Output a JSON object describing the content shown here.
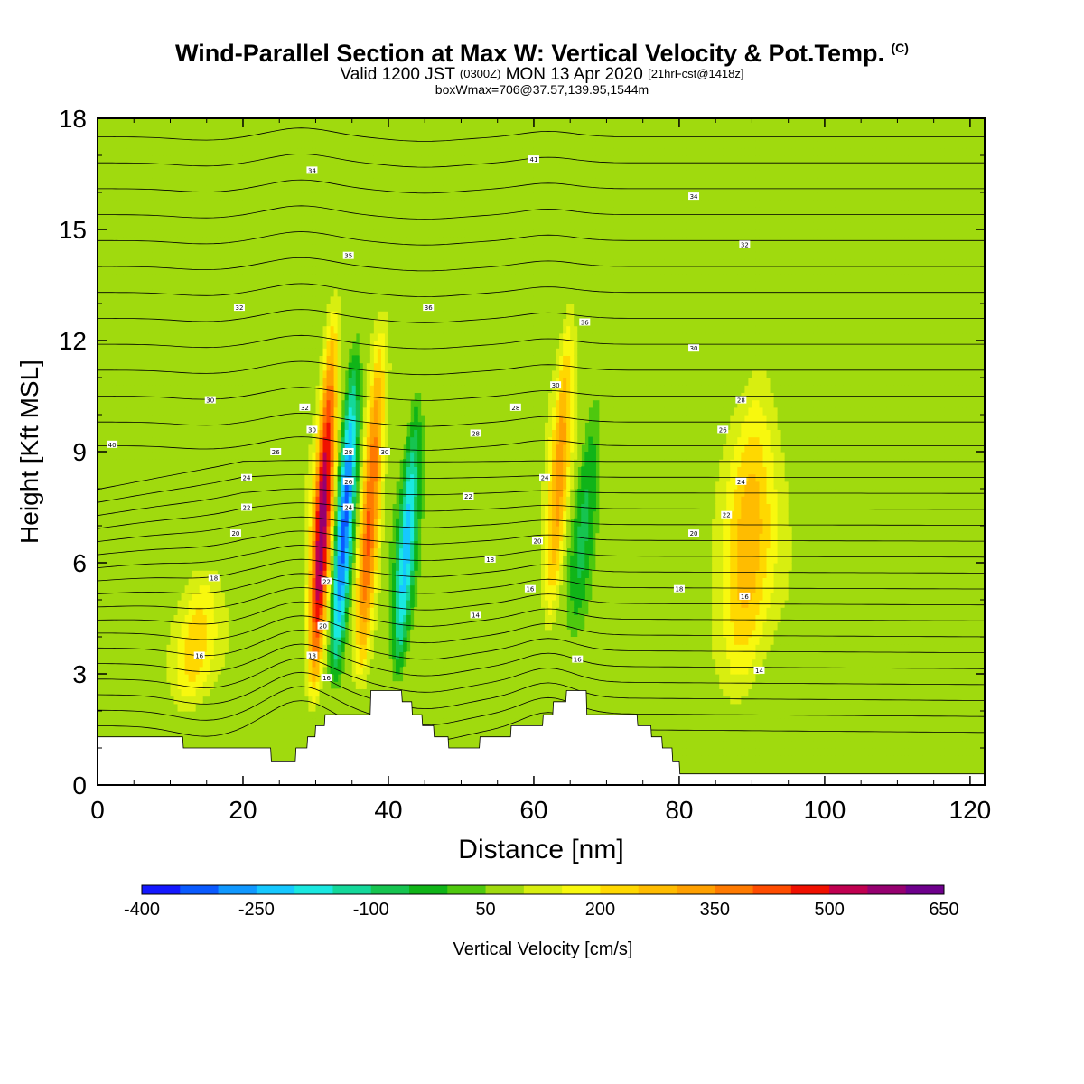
{
  "title": {
    "main": "Wind-Parallel Section at Max W: Vertical Velocity & Pot.Temp.",
    "copyright": "(C)",
    "valid_prefix": "Valid 1200 JST",
    "valid_utc": "(0300Z)",
    "valid_date": "MON 13 Apr 2020",
    "forecast": "[21hrFcst@1418z]",
    "subtitle": "boxWmax=706@37.57,139.95,1544m"
  },
  "chart_data": {
    "type": "heatmap",
    "xlabel": "Distance [nm]",
    "ylabel": "Height [Kft MSL]",
    "xlim": [
      0,
      122
    ],
    "ylim": [
      0,
      18
    ],
    "x_ticks": [
      "0",
      "20",
      "40",
      "60",
      "80",
      "100",
      "120"
    ],
    "y_ticks": [
      "0",
      "3",
      "6",
      "9",
      "12",
      "15",
      "18"
    ],
    "background_color": "#4ec80e",
    "colorbar": {
      "label": "Vertical Velocity [cm/s]",
      "tick_labels": [
        "-400",
        "-250",
        "-100",
        "50",
        "200",
        "350",
        "500",
        "650"
      ],
      "colors": [
        "#1418ff",
        "#0a5aff",
        "#1098ff",
        "#16c8ff",
        "#1ae8e0",
        "#14d89a",
        "#16c450",
        "#10b418",
        "#4ec80e",
        "#a0da0e",
        "#d8ee10",
        "#f8f80e",
        "#ffd800",
        "#ffbc00",
        "#ffa000",
        "#ff7a00",
        "#ff4c00",
        "#f01000",
        "#c00050",
        "#960070",
        "#6e008c"
      ]
    },
    "updrafts": [
      {
        "x": 29.5,
        "y_bottom": 1.8,
        "y_top": 13.5,
        "peak_cm_s": 500
      },
      {
        "x": 36,
        "y_bottom": 2.5,
        "y_top": 13,
        "peak_cm_s": 350
      },
      {
        "x": 62,
        "y_bottom": 4,
        "y_top": 13.5,
        "peak_cm_s": 250
      },
      {
        "x": 88,
        "y_bottom": 2,
        "y_top": 12,
        "peak_cm_s": 200
      },
      {
        "x": 12,
        "y_bottom": 1.8,
        "y_top": 6,
        "peak_cm_s": 150
      }
    ],
    "downdrafts": [
      {
        "x": 32.5,
        "y_bottom": 2.5,
        "y_top": 12.5,
        "peak_cm_s": -400
      },
      {
        "x": 41,
        "y_bottom": 2.5,
        "y_top": 11,
        "peak_cm_s": -300
      },
      {
        "x": 65.5,
        "y_bottom": 4,
        "y_top": 11,
        "peak_cm_s": -150
      }
    ],
    "terrain_kft": [
      [
        0,
        1.3
      ],
      [
        11.7,
        1.3
      ],
      [
        11.8,
        1.0
      ],
      [
        23.8,
        1.0
      ],
      [
        23.9,
        0.65
      ],
      [
        27.2,
        0.65
      ],
      [
        27.3,
        1.0
      ],
      [
        28.8,
        1.0
      ],
      [
        28.9,
        1.3
      ],
      [
        29.9,
        1.3
      ],
      [
        30,
        1.6
      ],
      [
        31.2,
        1.6
      ],
      [
        31.3,
        1.9
      ],
      [
        37.5,
        1.9
      ],
      [
        37.6,
        2.55
      ],
      [
        41.8,
        2.55
      ],
      [
        41.9,
        2.25
      ],
      [
        43.2,
        2.25
      ],
      [
        43.3,
        1.9
      ],
      [
        44.6,
        1.9
      ],
      [
        44.7,
        1.6
      ],
      [
        46.2,
        1.6
      ],
      [
        46.3,
        1.3
      ],
      [
        48.2,
        1.3
      ],
      [
        48.3,
        1.0
      ],
      [
        52.5,
        1.0
      ],
      [
        52.6,
        1.3
      ],
      [
        56.8,
        1.3
      ],
      [
        56.9,
        1.6
      ],
      [
        61.2,
        1.6
      ],
      [
        61.3,
        1.9
      ],
      [
        62.6,
        1.9
      ],
      [
        62.7,
        2.25
      ],
      [
        64.4,
        2.25
      ],
      [
        64.5,
        2.55
      ],
      [
        67.2,
        2.55
      ],
      [
        67.3,
        1.9
      ],
      [
        74.2,
        1.9
      ],
      [
        74.3,
        1.6
      ],
      [
        76.1,
        1.6
      ],
      [
        76.2,
        1.3
      ],
      [
        77.6,
        1.3
      ],
      [
        77.7,
        1.0
      ],
      [
        79,
        1.0
      ],
      [
        79.1,
        0.65
      ],
      [
        80,
        0.65
      ],
      [
        80.1,
        0.3
      ],
      [
        122,
        0.3
      ]
    ],
    "theta_contour_labels": [
      {
        "x": 2,
        "y": 9.2,
        "text": "40"
      },
      {
        "x": 14,
        "y": 3.5,
        "text": "16"
      },
      {
        "x": 16,
        "y": 5.6,
        "text": "18"
      },
      {
        "x": 19,
        "y": 6.8,
        "text": "20"
      },
      {
        "x": 20.5,
        "y": 7.5,
        "text": "22"
      },
      {
        "x": 20.5,
        "y": 8.3,
        "text": "24"
      },
      {
        "x": 24.5,
        "y": 9.0,
        "text": "26"
      },
      {
        "x": 15.5,
        "y": 10.4,
        "text": "30"
      },
      {
        "x": 19.5,
        "y": 12.9,
        "text": "32"
      },
      {
        "x": 29.5,
        "y": 16.6,
        "text": "34"
      },
      {
        "x": 34.5,
        "y": 14.3,
        "text": "35"
      },
      {
        "x": 28.5,
        "y": 10.2,
        "text": "32"
      },
      {
        "x": 29.5,
        "y": 9.6,
        "text": "30"
      },
      {
        "x": 34.5,
        "y": 9.0,
        "text": "28"
      },
      {
        "x": 34.5,
        "y": 8.2,
        "text": "26"
      },
      {
        "x": 34.5,
        "y": 7.5,
        "text": "24"
      },
      {
        "x": 31.5,
        "y": 5.5,
        "text": "22"
      },
      {
        "x": 31,
        "y": 4.3,
        "text": "20"
      },
      {
        "x": 29.5,
        "y": 3.5,
        "text": "18"
      },
      {
        "x": 31.5,
        "y": 2.9,
        "text": "16"
      },
      {
        "x": 39.5,
        "y": 9.0,
        "text": "30"
      },
      {
        "x": 45.5,
        "y": 12.9,
        "text": "36"
      },
      {
        "x": 52,
        "y": 9.5,
        "text": "28"
      },
      {
        "x": 51,
        "y": 7.8,
        "text": "22"
      },
      {
        "x": 54,
        "y": 6.1,
        "text": "18"
      },
      {
        "x": 52,
        "y": 4.6,
        "text": "14"
      },
      {
        "x": 57.5,
        "y": 10.2,
        "text": "28"
      },
      {
        "x": 60,
        "y": 16.9,
        "text": "41"
      },
      {
        "x": 60.5,
        "y": 6.6,
        "text": "20"
      },
      {
        "x": 59.5,
        "y": 5.3,
        "text": "16"
      },
      {
        "x": 61.5,
        "y": 8.3,
        "text": "24"
      },
      {
        "x": 63,
        "y": 10.8,
        "text": "30"
      },
      {
        "x": 67,
        "y": 12.5,
        "text": "36"
      },
      {
        "x": 66,
        "y": 3.4,
        "text": "16"
      },
      {
        "x": 82,
        "y": 15.9,
        "text": "34"
      },
      {
        "x": 82,
        "y": 11.8,
        "text": "30"
      },
      {
        "x": 82,
        "y": 6.8,
        "text": "20"
      },
      {
        "x": 80,
        "y": 5.3,
        "text": "18"
      },
      {
        "x": 89,
        "y": 14.6,
        "text": "32"
      },
      {
        "x": 88.5,
        "y": 10.4,
        "text": "28"
      },
      {
        "x": 86,
        "y": 9.6,
        "text": "26"
      },
      {
        "x": 88.5,
        "y": 8.2,
        "text": "24"
      },
      {
        "x": 86.5,
        "y": 7.3,
        "text": "22"
      },
      {
        "x": 89,
        "y": 5.1,
        "text": "16"
      },
      {
        "x": 91,
        "y": 3.1,
        "text": "14"
      }
    ]
  }
}
